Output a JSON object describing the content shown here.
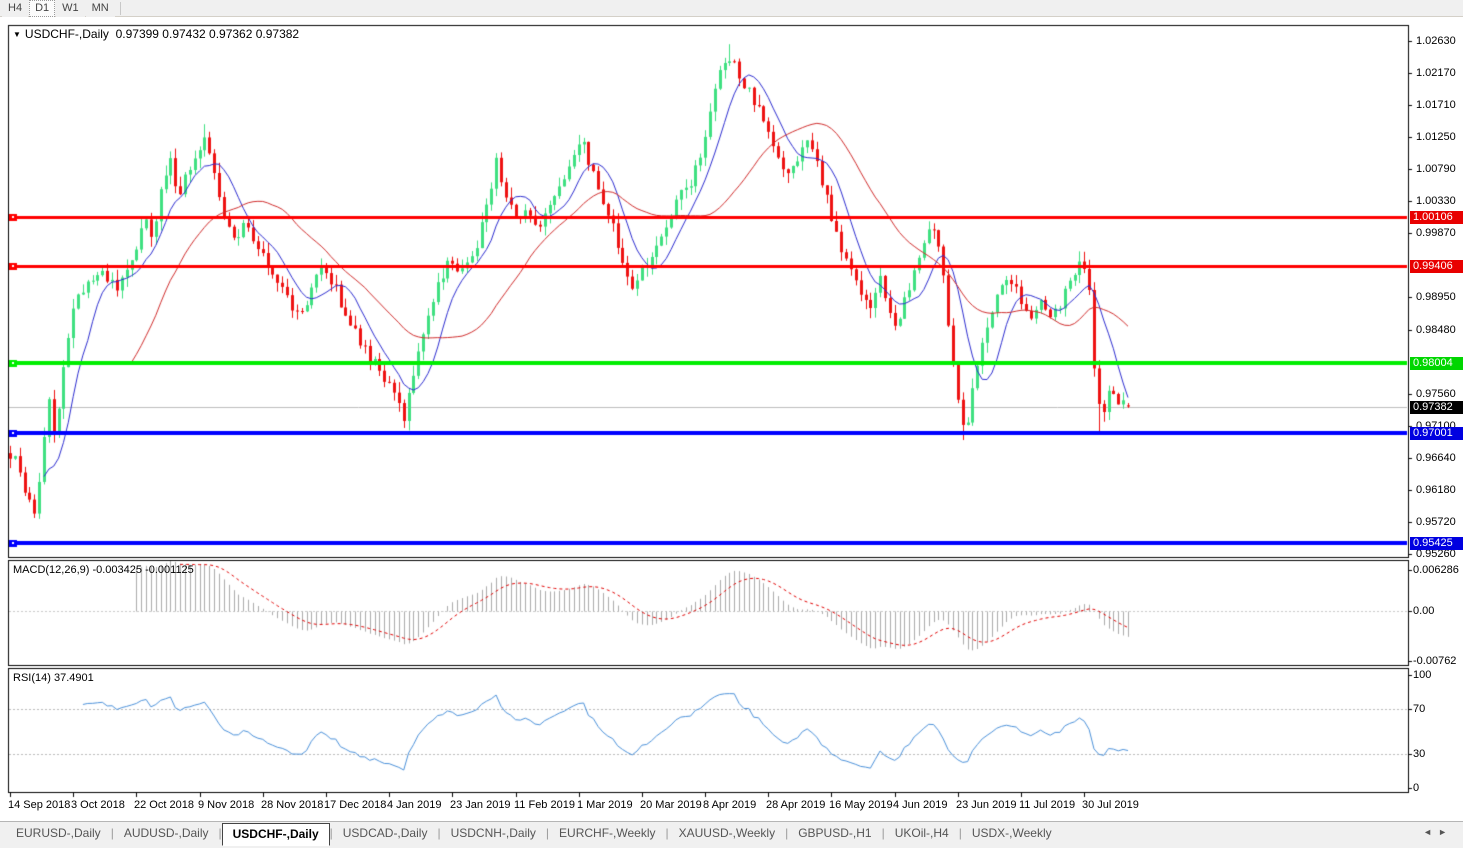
{
  "toolbar": {
    "buttons": [
      {
        "label": "H4",
        "active": false
      },
      {
        "label": "D1",
        "active": true
      },
      {
        "label": "W1",
        "active": false
      },
      {
        "label": "MN",
        "active": false
      }
    ]
  },
  "chart": {
    "title_symbol": "USDCHF-,Daily",
    "title_ohlc": "0.97399 0.97432 0.97362 0.97382",
    "macd_label": "MACD(12,26,9) -0.003425 -0.001125",
    "rsi_label": "RSI(14) 37.4901",
    "collapse_icon": "▼"
  },
  "chart_data": {
    "type": "candlestick",
    "symbol": "USDCHF",
    "timeframe": "Daily",
    "num_candles": 231,
    "last_candle_ohlc": {
      "open": 0.97399,
      "high": 0.97432,
      "low": 0.97362,
      "close": 0.97382
    },
    "price_scale": {
      "price_at_top": 1.02866,
      "price_at_bottom": 0.95219
    },
    "price_path_anchors": [
      [
        0.0,
        0.967
      ],
      [
        0.009,
        0.9648
      ],
      [
        0.016,
        0.96
      ],
      [
        0.022,
        0.9585
      ],
      [
        0.028,
        0.964
      ],
      [
        0.034,
        0.9755
      ],
      [
        0.04,
        0.969
      ],
      [
        0.048,
        0.98
      ],
      [
        0.058,
        0.989
      ],
      [
        0.07,
        0.9915
      ],
      [
        0.083,
        0.9928
      ],
      [
        0.096,
        0.9905
      ],
      [
        0.11,
        0.9952
      ],
      [
        0.12,
        1.0005
      ],
      [
        0.128,
        0.998
      ],
      [
        0.136,
        1.0058
      ],
      [
        0.144,
        1.0092
      ],
      [
        0.151,
        1.0038
      ],
      [
        0.16,
        1.0082
      ],
      [
        0.169,
        1.0112
      ],
      [
        0.175,
        1.0128
      ],
      [
        0.182,
        1.0072
      ],
      [
        0.191,
        1.0012
      ],
      [
        0.2,
        0.9975
      ],
      [
        0.212,
        1.0002
      ],
      [
        0.222,
        0.9968
      ],
      [
        0.233,
        0.9938
      ],
      [
        0.245,
        0.9906
      ],
      [
        0.256,
        0.9868
      ],
      [
        0.267,
        0.9892
      ],
      [
        0.278,
        0.9938
      ],
      [
        0.289,
        0.9916
      ],
      [
        0.301,
        0.9866
      ],
      [
        0.312,
        0.9836
      ],
      [
        0.322,
        0.9806
      ],
      [
        0.332,
        0.9788
      ],
      [
        0.343,
        0.9752
      ],
      [
        0.352,
        0.9722
      ],
      [
        0.359,
        0.9772
      ],
      [
        0.37,
        0.9852
      ],
      [
        0.381,
        0.9906
      ],
      [
        0.392,
        0.9946
      ],
      [
        0.403,
        0.993
      ],
      [
        0.414,
        0.9952
      ],
      [
        0.426,
        1.0026
      ],
      [
        0.435,
        1.009
      ],
      [
        0.444,
        1.0042
      ],
      [
        0.453,
        1.0002
      ],
      [
        0.462,
        1.0022
      ],
      [
        0.47,
        0.9992
      ],
      [
        0.479,
        1.0016
      ],
      [
        0.49,
        1.0042
      ],
      [
        0.501,
        1.0092
      ],
      [
        0.51,
        1.0126
      ],
      [
        0.519,
        1.0082
      ],
      [
        0.528,
        1.0042
      ],
      [
        0.537,
        1.0006
      ],
      [
        0.548,
        0.9946
      ],
      [
        0.557,
        0.9908
      ],
      [
        0.566,
        0.994
      ],
      [
        0.578,
        0.9962
      ],
      [
        0.588,
        1.0
      ],
      [
        0.599,
        1.004
      ],
      [
        0.611,
        1.0066
      ],
      [
        0.622,
        1.013
      ],
      [
        0.633,
        1.0212
      ],
      [
        0.642,
        1.0242
      ],
      [
        0.653,
        1.0212
      ],
      [
        0.662,
        1.0186
      ],
      [
        0.67,
        1.0162
      ],
      [
        0.679,
        1.0126
      ],
      [
        0.688,
        1.0086
      ],
      [
        0.697,
        1.0072
      ],
      [
        0.706,
        1.0102
      ],
      [
        0.715,
        1.0122
      ],
      [
        0.724,
        1.0076
      ],
      [
        0.733,
        1.0022
      ],
      [
        0.742,
        0.997
      ],
      [
        0.751,
        0.9935
      ],
      [
        0.76,
        0.99
      ],
      [
        0.769,
        0.988
      ],
      [
        0.778,
        0.993
      ],
      [
        0.786,
        0.987
      ],
      [
        0.794,
        0.9858
      ],
      [
        0.802,
        0.99
      ],
      [
        0.811,
        0.995
      ],
      [
        0.82,
        0.9992
      ],
      [
        0.828,
        1.0002
      ],
      [
        0.835,
        0.992
      ],
      [
        0.842,
        0.982
      ],
      [
        0.848,
        0.974
      ],
      [
        0.854,
        0.97
      ],
      [
        0.861,
        0.976
      ],
      [
        0.868,
        0.9822
      ],
      [
        0.876,
        0.987
      ],
      [
        0.885,
        0.9906
      ],
      [
        0.894,
        0.9926
      ],
      [
        0.903,
        0.9896
      ],
      [
        0.912,
        0.987
      ],
      [
        0.921,
        0.9892
      ],
      [
        0.93,
        0.9862
      ],
      [
        0.939,
        0.9886
      ],
      [
        0.948,
        0.992
      ],
      [
        0.957,
        0.9952
      ],
      [
        0.964,
        0.993
      ],
      [
        0.971,
        0.9762
      ],
      [
        0.977,
        0.9732
      ],
      [
        0.983,
        0.9756
      ],
      [
        0.99,
        0.9745
      ],
      [
        1.0,
        0.9738
      ]
    ],
    "wick_overrides": [
      {
        "frac": 0.022,
        "low": 0.9578
      },
      {
        "frac": 0.175,
        "high": 1.0144
      },
      {
        "frac": 0.352,
        "low": 0.9712
      },
      {
        "frac": 0.505,
        "high": 1.0107
      },
      {
        "frac": 0.642,
        "high": 1.0259
      },
      {
        "frac": 0.854,
        "low": 0.969
      },
      {
        "frac": 0.974,
        "low": 0.97
      }
    ],
    "x_labels": [
      "14 Sep 2018",
      "3 Oct 2018",
      "22 Oct 2018",
      "9 Nov 2018",
      "28 Nov 2018",
      "17 Dec 2018",
      "4 Jan 2019",
      "23 Jan 2019",
      "11 Feb 2019",
      "1 Mar 2019",
      "20 Mar 2019",
      "8 Apr 2019",
      "28 Apr 2019",
      "16 May 2019",
      "4 Jun 2019",
      "23 Jun 2019",
      "11 Jul 2019",
      "30 Jul 2019"
    ],
    "x_label_every_n_candles": 13,
    "y_ticks": [
      "1.02630",
      "1.02170",
      "1.01710",
      "1.01250",
      "1.00790",
      "1.00330",
      "0.99870",
      "0.98950",
      "0.98480",
      "0.97560",
      "0.97100",
      "0.96640",
      "0.96180",
      "0.95720",
      "0.95260"
    ],
    "y_badges": [
      {
        "value": "1.00106",
        "color": "#e80000"
      },
      {
        "value": "0.99406",
        "color": "#e80000"
      },
      {
        "value": "0.98004",
        "color": "#00d600"
      },
      {
        "value": "0.97382",
        "color": "#000000"
      },
      {
        "value": "0.97001",
        "color": "#0000e0"
      },
      {
        "value": "0.95425",
        "color": "#0000e0"
      }
    ],
    "hlines": [
      {
        "price": 1.00106,
        "color": "#ff0000",
        "width": 3
      },
      {
        "price": 0.99406,
        "color": "#ff0000",
        "width": 3
      },
      {
        "price": 0.98004,
        "color": "#00ee00",
        "width": 4
      },
      {
        "price": 0.97001,
        "color": "#0000ff",
        "width": 4
      },
      {
        "price": 0.95425,
        "color": "#0000ff",
        "width": 4
      }
    ],
    "current_price": 0.97382,
    "moving_averages": [
      {
        "period": 8,
        "color": "#2b2bcf"
      },
      {
        "period": 26,
        "color": "#cf2b2b"
      }
    ],
    "macd": {
      "fast": 12,
      "slow": 26,
      "signal": 9,
      "value": -0.003425,
      "signal_value": -0.001125,
      "axis_ticks": [
        "0.006286",
        "0.00",
        "-0.00762"
      ],
      "hist_color": "#ababab",
      "signal_color": "#e00000"
    },
    "rsi": {
      "period": 14,
      "value": 37.4901,
      "axis_ticks": [
        "100",
        "70",
        "30",
        "0"
      ],
      "levels": [
        70,
        30
      ],
      "color": "#4a90d9"
    },
    "candle_colors": {
      "bull": "#3fe081",
      "bear": "#ee1212"
    }
  },
  "tabs": {
    "items": [
      {
        "label": "EURUSD-,Daily",
        "active": false
      },
      {
        "label": "AUDUSD-,Daily",
        "active": false
      },
      {
        "label": "USDCHF-,Daily",
        "active": true
      },
      {
        "label": "USDCAD-,Daily",
        "active": false
      },
      {
        "label": "USDCNH-,Daily",
        "active": false
      },
      {
        "label": "EURCHF-,Weekly",
        "active": false
      },
      {
        "label": "XAUUSD-,Weekly",
        "active": false
      },
      {
        "label": "GBPUSD-,H1",
        "active": false
      },
      {
        "label": "UKOil-,H4",
        "active": false
      },
      {
        "label": "USDX-,Weekly",
        "active": false
      }
    ],
    "scroll_left_icon": "◄",
    "scroll_right_icon": "►"
  }
}
